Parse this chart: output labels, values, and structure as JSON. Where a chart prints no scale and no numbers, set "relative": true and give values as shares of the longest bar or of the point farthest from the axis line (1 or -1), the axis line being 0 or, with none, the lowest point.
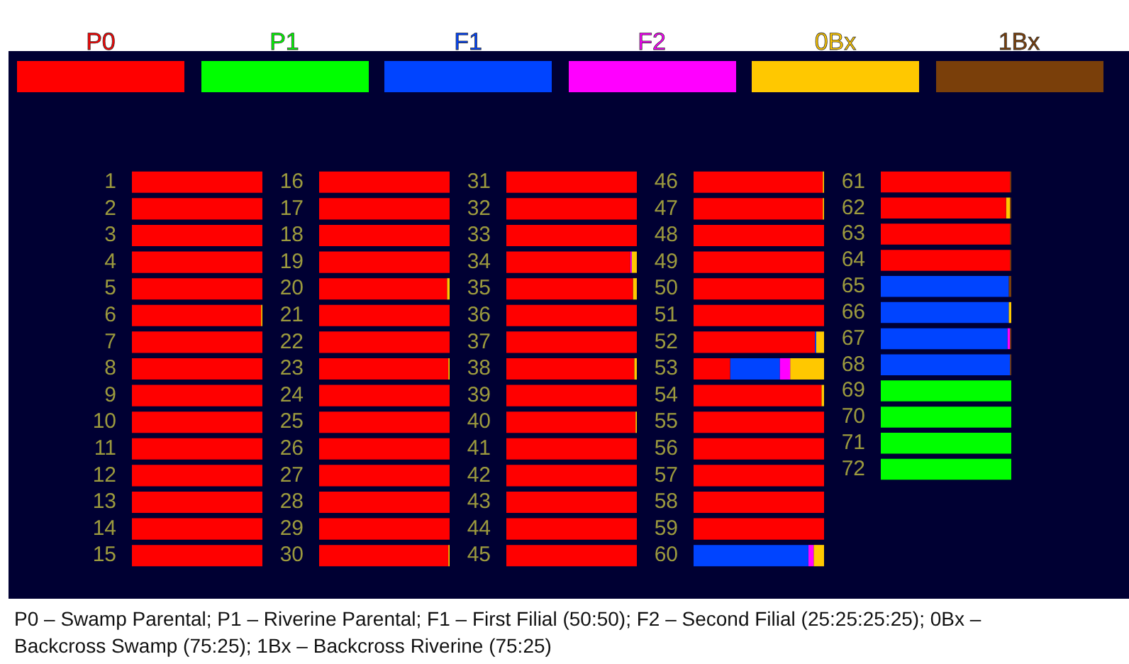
{
  "chart_data": [
    {
      "type": "bar",
      "orientation": "horizontal",
      "stacked": true,
      "relative": true,
      "categories": [
        "1",
        "2",
        "3",
        "4",
        "5",
        "6",
        "7",
        "8",
        "9",
        "10",
        "11",
        "12",
        "13",
        "14",
        "15"
      ],
      "series": [
        {
          "color": "#ff0000",
          "values": [
            1,
            1,
            1,
            1,
            1,
            0.99,
            1,
            1,
            1,
            1,
            1,
            1,
            1,
            1,
            1
          ]
        },
        {
          "color": "#00ff00",
          "values": [
            0,
            0,
            0,
            0,
            0,
            0,
            0,
            0,
            0,
            0,
            0,
            0,
            0,
            0,
            0
          ]
        },
        {
          "color": "#0044ff",
          "values": [
            0,
            0,
            0,
            0,
            0,
            0,
            0,
            0,
            0,
            0,
            0,
            0,
            0,
            0,
            0
          ]
        },
        {
          "color": "#ff00ff",
          "values": [
            0,
            0,
            0,
            0,
            0,
            0,
            0,
            0,
            0,
            0,
            0,
            0,
            0,
            0,
            0
          ]
        },
        {
          "color": "#ffc800",
          "values": [
            0,
            0,
            0,
            0,
            0,
            0.01,
            0,
            0,
            0,
            0,
            0,
            0,
            0,
            0,
            0
          ]
        },
        {
          "color": "#7a3f0a",
          "values": [
            0,
            0,
            0,
            0,
            0,
            0,
            0,
            0,
            0,
            0,
            0,
            0,
            0,
            0,
            0
          ]
        }
      ],
      "annotations": [
        "P0 – Swamp Parental; P1 – Riverine Parental; F1 – First Filial (50:50); F2 – Second Filial (25:25:25:25); 0Bx – Backcross Swamp (75:25); 1Bx – Backcross Riverine (75:25)"
      ]
    },
    {
      "type": "bar",
      "orientation": "horizontal",
      "stacked": true,
      "relative": true,
      "categories": [
        "16",
        "17",
        "18",
        "19",
        "20",
        "21",
        "22",
        "23",
        "24",
        "25",
        "26",
        "27",
        "28",
        "29",
        "30"
      ],
      "series": [
        {
          "color": "#ff0000",
          "values": [
            1,
            1,
            1,
            1,
            0.98,
            1,
            1,
            0.99,
            1,
            1,
            1,
            1,
            1,
            1,
            0.99
          ]
        },
        {
          "color": "#00ff00",
          "values": [
            0,
            0,
            0,
            0,
            0,
            0,
            0,
            0,
            0,
            0,
            0,
            0,
            0,
            0,
            0
          ]
        },
        {
          "color": "#0044ff",
          "values": [
            0,
            0,
            0,
            0,
            0,
            0,
            0,
            0,
            0,
            0,
            0,
            0,
            0,
            0,
            0
          ]
        },
        {
          "color": "#ff00ff",
          "values": [
            0,
            0,
            0,
            0,
            0,
            0,
            0,
            0,
            0,
            0,
            0,
            0,
            0,
            0,
            0
          ]
        },
        {
          "color": "#ffc800",
          "values": [
            0,
            0,
            0,
            0,
            0.02,
            0,
            0,
            0.01,
            0,
            0,
            0,
            0,
            0,
            0,
            0.01
          ]
        },
        {
          "color": "#7a3f0a",
          "values": [
            0,
            0,
            0,
            0,
            0,
            0,
            0,
            0,
            0,
            0,
            0,
            0,
            0,
            0,
            0
          ]
        }
      ]
    },
    {
      "type": "bar",
      "orientation": "horizontal",
      "stacked": true,
      "relative": true,
      "categories": [
        "31",
        "32",
        "33",
        "34",
        "35",
        "36",
        "37",
        "38",
        "39",
        "40",
        "41",
        "42",
        "43",
        "44",
        "45"
      ],
      "series": [
        {
          "color": "#ff0000",
          "values": [
            1,
            1,
            1,
            0.95,
            0.97,
            1,
            1,
            0.98,
            1,
            0.99,
            1,
            1,
            1,
            1,
            1
          ]
        },
        {
          "color": "#00ff00",
          "values": [
            0,
            0,
            0,
            0,
            0,
            0,
            0,
            0,
            0,
            0,
            0,
            0,
            0,
            0,
            0
          ]
        },
        {
          "color": "#0044ff",
          "values": [
            0,
            0,
            0,
            0,
            0,
            0,
            0,
            0,
            0,
            0,
            0,
            0,
            0,
            0,
            0
          ]
        },
        {
          "color": "#ff00ff",
          "values": [
            0,
            0,
            0,
            0.01,
            0,
            0,
            0,
            0,
            0,
            0,
            0,
            0,
            0,
            0,
            0
          ]
        },
        {
          "color": "#ffc800",
          "values": [
            0,
            0,
            0,
            0.04,
            0.03,
            0,
            0,
            0.02,
            0,
            0.01,
            0,
            0,
            0,
            0,
            0
          ]
        },
        {
          "color": "#7a3f0a",
          "values": [
            0,
            0,
            0,
            0,
            0,
            0,
            0,
            0,
            0,
            0,
            0,
            0,
            0,
            0,
            0
          ]
        }
      ]
    },
    {
      "type": "bar",
      "orientation": "horizontal",
      "stacked": true,
      "relative": true,
      "categories": [
        "46",
        "47",
        "48",
        "49",
        "50",
        "51",
        "52",
        "53",
        "54",
        "55",
        "56",
        "57",
        "58",
        "59",
        "60"
      ],
      "series": [
        {
          "color": "#ff0000",
          "values": [
            0.99,
            0.99,
            1,
            1,
            1,
            1,
            0.93,
            0.28,
            0.98,
            1,
            1,
            1,
            1,
            1,
            0
          ]
        },
        {
          "color": "#00ff00",
          "values": [
            0,
            0,
            0,
            0,
            0,
            0,
            0,
            0,
            0,
            0,
            0,
            0,
            0,
            0,
            0
          ]
        },
        {
          "color": "#0044ff",
          "values": [
            0,
            0,
            0,
            0,
            0,
            0,
            0.01,
            0.38,
            0,
            0,
            0,
            0,
            0,
            0,
            0.88
          ]
        },
        {
          "color": "#ff00ff",
          "values": [
            0,
            0,
            0,
            0,
            0,
            0,
            0,
            0.08,
            0,
            0,
            0,
            0,
            0,
            0,
            0.04
          ]
        },
        {
          "color": "#ffc800",
          "values": [
            0.01,
            0.01,
            0,
            0,
            0,
            0,
            0.06,
            0.26,
            0.02,
            0,
            0,
            0,
            0,
            0,
            0.08
          ]
        },
        {
          "color": "#7a3f0a",
          "values": [
            0,
            0,
            0,
            0,
            0,
            0,
            0,
            0,
            0,
            0,
            0,
            0,
            0,
            0,
            0
          ]
        }
      ]
    },
    {
      "type": "bar",
      "orientation": "horizontal",
      "stacked": true,
      "relative": true,
      "legend": "top",
      "categories": [
        "61",
        "62",
        "63",
        "64",
        "65",
        "66",
        "67",
        "68",
        "69",
        "70",
        "71",
        "72"
      ],
      "series": [
        {
          "name": "P0",
          "color": "#ff0000",
          "values": [
            0.99,
            0.96,
            0.99,
            0.99,
            0,
            0,
            0,
            0,
            0,
            0,
            0,
            0
          ]
        },
        {
          "name": "P1",
          "color": "#00ff00",
          "values": [
            0,
            0,
            0,
            0,
            0,
            0,
            0,
            0,
            1,
            1,
            1,
            1
          ]
        },
        {
          "name": "F1",
          "color": "#0044ff",
          "values": [
            0,
            0,
            0,
            0,
            0.98,
            0.98,
            0.97,
            0.99,
            0,
            0,
            0,
            0
          ]
        },
        {
          "name": "F2",
          "color": "#ff00ff",
          "values": [
            0,
            0,
            0,
            0,
            0,
            0,
            0.02,
            0,
            0,
            0,
            0,
            0
          ]
        },
        {
          "name": "0Bx",
          "color": "#ffc800",
          "values": [
            0,
            0.03,
            0,
            0,
            0,
            0.02,
            0,
            0,
            0,
            0,
            0,
            0
          ]
        },
        {
          "name": "1Bx",
          "color": "#7a3f0a",
          "values": [
            0.01,
            0.01,
            0.01,
            0.01,
            0.02,
            0,
            0.01,
            0.01,
            0,
            0,
            0,
            0
          ]
        }
      ]
    }
  ]
}
